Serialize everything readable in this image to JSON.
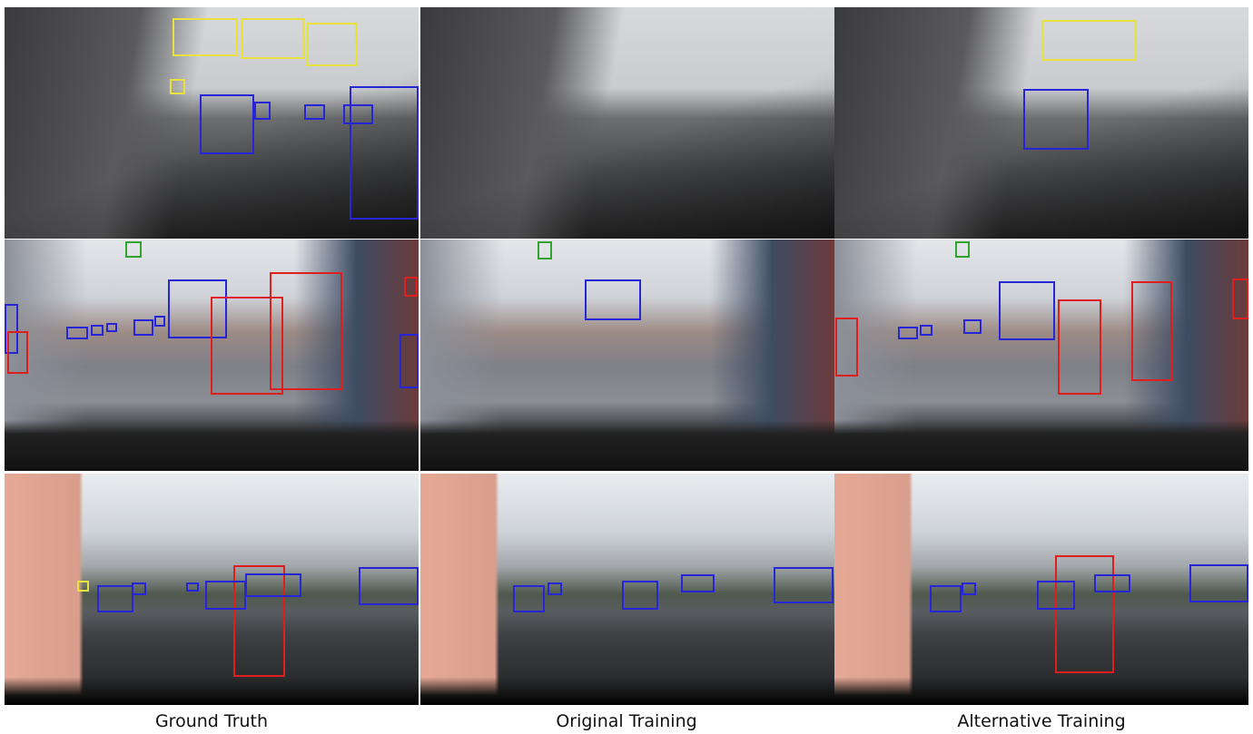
{
  "captions": [
    "Ground Truth",
    "Original Training",
    "Alternative Training"
  ]
}
